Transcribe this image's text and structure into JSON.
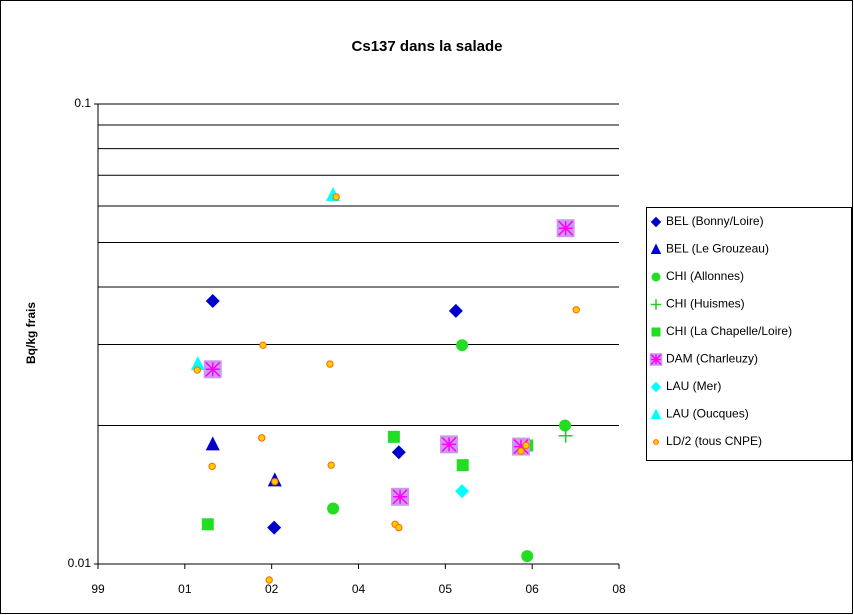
{
  "chart_data": {
    "type": "scatter",
    "title": "Cs137 dans la salade",
    "ylabel": "Bq/kg frais",
    "log_y": true,
    "grid": true,
    "ylim": [
      0.01,
      0.1
    ],
    "yticks": [
      0.01,
      0.1
    ],
    "y_minor_ticks": [
      0.02,
      0.03,
      0.04,
      0.05,
      0.06,
      0.07,
      0.08,
      0.09
    ],
    "xlim": [
      1999.9,
      2008.3
    ],
    "xticks": [
      {
        "value": 1999.9,
        "label": "99"
      },
      {
        "value": 2001.3,
        "label": "01"
      },
      {
        "value": 2002.7,
        "label": "02"
      },
      {
        "value": 2004.1,
        "label": "04"
      },
      {
        "value": 2005.5,
        "label": "05"
      },
      {
        "value": 2006.9,
        "label": "06"
      },
      {
        "value": 2008.3,
        "label": "08"
      }
    ],
    "legend": "right",
    "series": [
      {
        "name": "BEL (Bonny/Loire)",
        "color": "#0000cc",
        "marker": "diamond",
        "x": [
          2001.75,
          2005.67,
          2004.75,
          2002.74
        ],
        "values": [
          0.0373,
          0.0355,
          0.0175,
          0.012
        ]
      },
      {
        "name": "BEL (Le Grouzeau)",
        "color": "#0000cc",
        "marker": "triangle",
        "x": [
          2001.75,
          2002.75
        ],
        "values": [
          0.0182,
          0.0152
        ]
      },
      {
        "name": "CHI (Allonnes)",
        "color": "#22dd22",
        "marker": "circle",
        "x": [
          2005.77,
          2003.69,
          2006.82,
          2007.43
        ],
        "values": [
          0.0299,
          0.0132,
          0.0104,
          0.02
        ]
      },
      {
        "name": "CHI (Huismes)",
        "color": "#22cc22",
        "marker": "plus",
        "x": [
          2007.44
        ],
        "values": [
          0.019
        ]
      },
      {
        "name": "CHI (La Chapelle/Loire)",
        "color": "#22dd22",
        "marker": "square",
        "x": [
          2001.67,
          2004.67,
          2005.78,
          2006.82
        ],
        "values": [
          0.0122,
          0.0189,
          0.0164,
          0.0181
        ]
      },
      {
        "name": "DAM (Charleuzy)",
        "color": "#ff00ff",
        "marker": "square-star",
        "x": [
          2001.75,
          2007.44,
          2005.56,
          2004.77,
          2006.72
        ],
        "values": [
          0.0265,
          0.0537,
          0.0182,
          0.014,
          0.018
        ]
      },
      {
        "name": "LAU (Mer)",
        "color": "#00ffff",
        "marker": "diamond",
        "x": [
          2005.77
        ],
        "values": [
          0.0144
        ]
      },
      {
        "name": "LAU (Oucques)",
        "color": "#00ffff",
        "marker": "triangle",
        "x": [
          2003.69,
          2001.51
        ],
        "values": [
          0.0634,
          0.0272
        ]
      },
      {
        "name": "LD/2 (tous CNPE)",
        "color": "#ffcc00",
        "marker": "small-circle",
        "x": [
          2003.74,
          2002.56,
          2003.64,
          2001.5,
          2002.54,
          2001.74,
          2003.66,
          2002.75,
          2004.69,
          2004.75,
          2002.66,
          2006.72,
          2006.8,
          2007.61
        ],
        "values": [
          0.0628,
          0.0299,
          0.0272,
          0.0264,
          0.0188,
          0.0163,
          0.0164,
          0.0151,
          0.0122,
          0.012,
          0.00923,
          0.0176,
          0.0181,
          0.0357
        ]
      }
    ]
  }
}
